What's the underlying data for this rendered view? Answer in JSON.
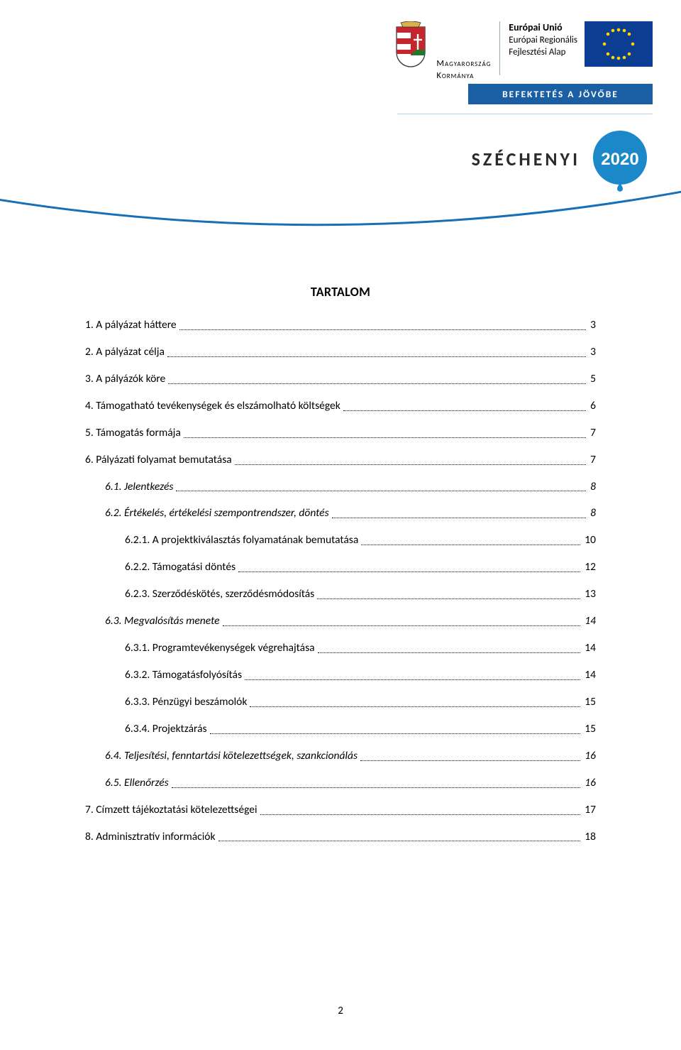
{
  "header": {
    "gov_line1": "Magyarország",
    "gov_line2": "Kormánya",
    "eu_title": "Európai Unió",
    "eu_sub1": "Európai Regionális",
    "eu_sub2": "Fejlesztési Alap",
    "invest_banner": "BEFEKTETÉS A JÖVŐBE",
    "szechenyi_title": "SZÉCHENYI",
    "szechenyi_year": "2020",
    "colors": {
      "banner_bg": "#1a5fa3",
      "banner_text": "#ffffff",
      "arc_color": "#1770b7",
      "badge_fill": "#1a88c9",
      "eu_flag_bg": "#0b3e92",
      "eu_flag_star": "#ffd400"
    }
  },
  "toc": {
    "title": "TARTALOM",
    "entries": [
      {
        "level": 1,
        "label": "1. A pályázat háttere",
        "page": "3",
        "italic": false
      },
      {
        "level": 1,
        "label": "2. A pályázat célja",
        "page": "3",
        "italic": false
      },
      {
        "level": 1,
        "label": "3. A pályázók köre",
        "page": "5",
        "italic": false
      },
      {
        "level": 1,
        "label": "4. Támogatható tevékenységek és elszámolható költségek",
        "page": "6",
        "italic": false
      },
      {
        "level": 1,
        "label": "5. Támogatás formája",
        "page": "7",
        "italic": false
      },
      {
        "level": 1,
        "label": "6. Pályázati folyamat bemutatása",
        "page": "7",
        "italic": false
      },
      {
        "level": 2,
        "label": "6.1. Jelentkezés",
        "page": "8",
        "italic": true
      },
      {
        "level": 2,
        "label": "6.2. Értékelés, értékelési szempontrendszer, döntés",
        "page": "8",
        "italic": true
      },
      {
        "level": 3,
        "label": "6.2.1. A projektkiválasztás folyamatának bemutatása",
        "page": "10",
        "italic": false
      },
      {
        "level": 3,
        "label": "6.2.2. Támogatási döntés",
        "page": "12",
        "italic": false
      },
      {
        "level": 3,
        "label": "6.2.3. Szerződéskötés, szerződésmódosítás",
        "page": "13",
        "italic": false
      },
      {
        "level": 2,
        "label": "6.3. Megvalósítás menete",
        "page": "14",
        "italic": true
      },
      {
        "level": 3,
        "label": "6.3.1. Programtevékenységek végrehajtása",
        "page": "14",
        "italic": false
      },
      {
        "level": 3,
        "label": "6.3.2. Támogatásfolyósítás",
        "page": "14",
        "italic": false
      },
      {
        "level": 3,
        "label": "6.3.3. Pénzügyi beszámolók",
        "page": "15",
        "italic": false
      },
      {
        "level": 3,
        "label": "6.3.4. Projektzárás",
        "page": "15",
        "italic": false
      },
      {
        "level": 2,
        "label": "6.4. Teljesítési, fenntartási kötelezettségek, szankcionálás",
        "page": "16",
        "italic": true
      },
      {
        "level": 2,
        "label": "6.5. Ellenőrzés",
        "page": "16",
        "italic": true
      },
      {
        "level": 1,
        "label": "7. Címzett tájékoztatási kötelezettségei",
        "page": "17",
        "italic": false
      },
      {
        "level": 1,
        "label": "8. Adminisztratív információk",
        "page": "18",
        "italic": false
      }
    ]
  },
  "page_number": "2",
  "fontsizes": {
    "toc_title": 18,
    "toc_entry": 15.5,
    "header_small": 13
  }
}
